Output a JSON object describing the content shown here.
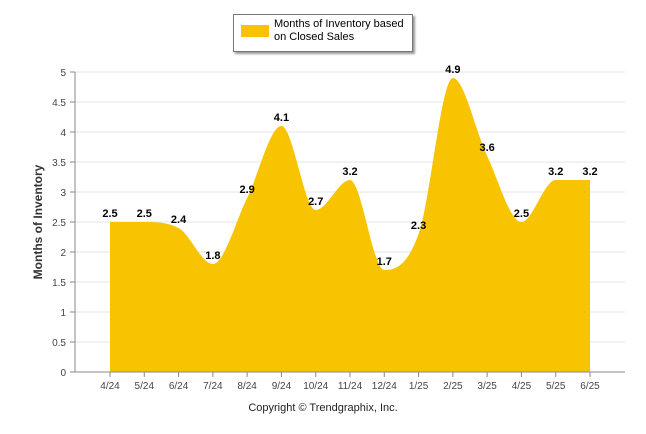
{
  "chart_data": {
    "type": "area",
    "categories": [
      "4/24",
      "5/24",
      "6/24",
      "7/24",
      "8/24",
      "9/24",
      "10/24",
      "11/24",
      "12/24",
      "1/25",
      "2/25",
      "3/25",
      "4/25",
      "5/25",
      "6/25"
    ],
    "series": [
      {
        "name": "Months of Inventory based on Closed Sales",
        "values": [
          2.5,
          2.5,
          2.4,
          1.8,
          2.9,
          4.1,
          2.7,
          3.2,
          1.7,
          2.3,
          4.9,
          3.6,
          2.5,
          3.2,
          3.2
        ]
      }
    ],
    "data_labels": [
      "2.5",
      "2.5",
      "2.4",
      "1.8",
      "2.9",
      "4.1",
      "2.7",
      "3.2",
      "1.7",
      "2.3",
      "4.9",
      "3.6",
      "2.5",
      "3.2",
      "3.2"
    ],
    "ylabel": "Months of Inventory",
    "xlabel": "",
    "ylim": [
      0,
      5
    ],
    "yticks": [
      "0",
      "0.5",
      "1",
      "1.5",
      "2",
      "2.5",
      "3",
      "3.5",
      "4",
      "4.5",
      "5"
    ],
    "grid": true,
    "legend": "top-center",
    "colors": {
      "fill": "#F8C300",
      "grid": "#e5e5e5",
      "axis": "#888888"
    }
  },
  "legend": {
    "label": "Months of Inventory based on Closed Sales"
  },
  "footer": {
    "copyright": "Copyright © Trendgraphix, Inc."
  }
}
